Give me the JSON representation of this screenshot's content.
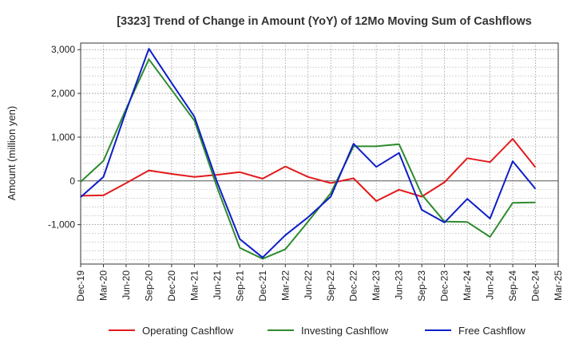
{
  "chart_data": {
    "type": "line",
    "title": "[3323]  Trend of Change in Amount (YoY) of 12Mo Moving Sum of Cashflows",
    "ylabel": "Amount (million yen)",
    "xlabel": "",
    "ylim": [
      -1900,
      3150
    ],
    "yticks": [
      3000,
      2000,
      1000,
      0,
      -1000
    ],
    "ytick_labels": [
      "3,000",
      "2,000",
      "1,000",
      "0",
      "-1,000"
    ],
    "categories": [
      "Dec-19",
      "Mar-20",
      "Jun-20",
      "Sep-20",
      "Dec-20",
      "Mar-21",
      "Jun-21",
      "Sep-21",
      "Dec-21",
      "Mar-22",
      "Jun-22",
      "Sep-22",
      "Dec-22",
      "Mar-23",
      "Jun-23",
      "Sep-23",
      "Dec-23",
      "Mar-24",
      "Jun-24",
      "Sep-24",
      "Dec-24",
      "Mar-25"
    ],
    "grid": true,
    "legend_position": "bottom",
    "series": [
      {
        "name": "Operating Cashflow",
        "color": "#e31a1c",
        "values": [
          -340,
          -330,
          -50,
          240,
          160,
          90,
          140,
          200,
          50,
          330,
          90,
          -50,
          60,
          -460,
          -200,
          -360,
          -30,
          520,
          430,
          960,
          310,
          null
        ]
      },
      {
        "name": "Investing Cashflow",
        "color": "#2e8b2e",
        "values": [
          -20,
          460,
          1650,
          2780,
          2080,
          1380,
          -150,
          -1530,
          -1780,
          -1560,
          -930,
          -280,
          790,
          790,
          840,
          -310,
          -930,
          -940,
          -1280,
          -500,
          -490,
          null
        ]
      },
      {
        "name": "Free Cashflow",
        "color": "#0f1ec8",
        "values": [
          -370,
          90,
          1600,
          3020,
          2240,
          1470,
          -30,
          -1330,
          -1750,
          -1240,
          -830,
          -360,
          850,
          320,
          640,
          -660,
          -950,
          -410,
          -860,
          450,
          -180,
          null
        ]
      }
    ]
  }
}
